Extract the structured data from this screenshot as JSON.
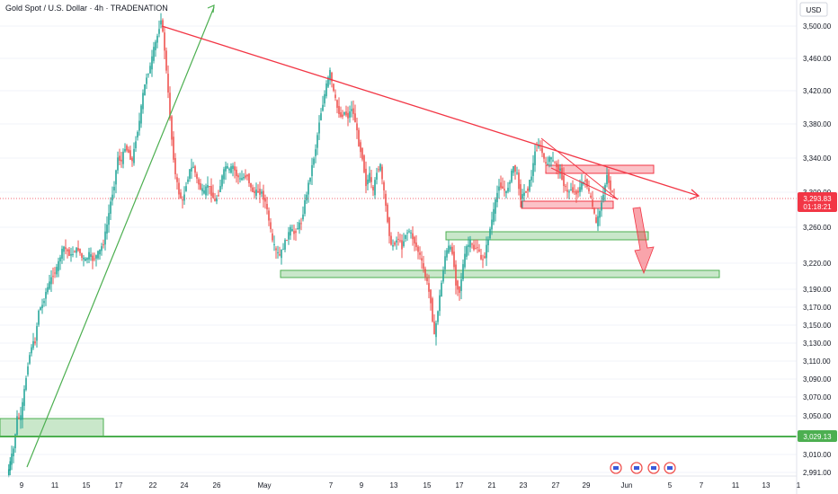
{
  "header": {
    "title": "Gold Spot / U.S. Dollar · 4h · TRADENATION",
    "currency": "USD"
  },
  "price_axis": {
    "ticks": [
      "3,500.00",
      "3,460.00",
      "3,420.00",
      "3,380.00",
      "3,340.00",
      "3,300.00",
      "3,260.00",
      "3,220.00",
      "3,190.00",
      "3,170.00",
      "3,150.00",
      "3,130.00",
      "3,110.00",
      "3,090.00",
      "3,070.00",
      "3,050.00",
      "3,029.13",
      "3,010.00",
      "2,991.00"
    ],
    "current_price": "3,293.83",
    "countdown": "01:18:21",
    "level_label": "3,029.13"
  },
  "time_axis": {
    "ticks": [
      "9",
      "11",
      "15",
      "17",
      "22",
      "24",
      "26",
      "May",
      "7",
      "9",
      "13",
      "15",
      "17",
      "21",
      "23",
      "27",
      "29",
      "Jun",
      "5",
      "7",
      "11",
      "13",
      "1"
    ]
  },
  "colors": {
    "up": "#26a69a",
    "down": "#ef5350",
    "zone_green": "#4caf50",
    "zone_red": "#f23645",
    "trend_red": "#f23645",
    "trend_green": "#4caf50",
    "current_price_bg": "#f23645",
    "level_bg": "#4caf50"
  },
  "chart_data": {
    "type": "candlestick",
    "title": "Gold Spot / U.S. Dollar · 4h · TRADENATION",
    "ylim": [
      2985,
      3515
    ],
    "path_points": [
      [
        9,
        2985
      ],
      [
        12,
        3000
      ],
      [
        16,
        3015
      ],
      [
        20,
        3050
      ],
      [
        24,
        3050
      ],
      [
        28,
        3080
      ],
      [
        32,
        3110
      ],
      [
        36,
        3130
      ],
      [
        40,
        3135
      ],
      [
        44,
        3170
      ],
      [
        48,
        3175
      ],
      [
        52,
        3190
      ],
      [
        56,
        3200
      ],
      [
        60,
        3210
      ],
      [
        64,
        3215
      ],
      [
        68,
        3230
      ],
      [
        72,
        3240
      ],
      [
        76,
        3235
      ],
      [
        80,
        3230
      ],
      [
        84,
        3236
      ],
      [
        88,
        3238
      ],
      [
        92,
        3228
      ],
      [
        96,
        3225
      ],
      [
        100,
        3232
      ],
      [
        104,
        3226
      ],
      [
        108,
        3230
      ],
      [
        112,
        3236
      ],
      [
        116,
        3245
      ],
      [
        120,
        3265
      ],
      [
        124,
        3290
      ],
      [
        128,
        3310
      ],
      [
        132,
        3340
      ],
      [
        136,
        3335
      ],
      [
        140,
        3352
      ],
      [
        144,
        3345
      ],
      [
        148,
        3335
      ],
      [
        152,
        3360
      ],
      [
        156,
        3380
      ],
      [
        160,
        3410
      ],
      [
        164,
        3430
      ],
      [
        168,
        3440
      ],
      [
        172,
        3460
      ],
      [
        176,
        3475
      ],
      [
        180,
        3495
      ],
      [
        184,
        3460
      ],
      [
        188,
        3410
      ],
      [
        192,
        3360
      ],
      [
        196,
        3320
      ],
      [
        200,
        3300
      ],
      [
        204,
        3290
      ],
      [
        208,
        3310
      ],
      [
        212,
        3325
      ],
      [
        216,
        3330
      ],
      [
        220,
        3315
      ],
      [
        224,
        3305
      ],
      [
        228,
        3300
      ],
      [
        232,
        3310
      ],
      [
        236,
        3300
      ],
      [
        240,
        3290
      ],
      [
        244,
        3300
      ],
      [
        248,
        3318
      ],
      [
        252,
        3330
      ],
      [
        256,
        3325
      ],
      [
        260,
        3330
      ],
      [
        264,
        3320
      ],
      [
        268,
        3315
      ],
      [
        272,
        3318
      ],
      [
        276,
        3320
      ],
      [
        280,
        3305
      ],
      [
        284,
        3300
      ],
      [
        288,
        3302
      ],
      [
        292,
        3300
      ],
      [
        296,
        3290
      ],
      [
        300,
        3270
      ],
      [
        304,
        3245
      ],
      [
        308,
        3235
      ],
      [
        312,
        3230
      ],
      [
        316,
        3240
      ],
      [
        320,
        3250
      ],
      [
        324,
        3260
      ],
      [
        328,
        3255
      ],
      [
        332,
        3262
      ],
      [
        336,
        3268
      ],
      [
        340,
        3290
      ],
      [
        344,
        3310
      ],
      [
        348,
        3330
      ],
      [
        352,
        3350
      ],
      [
        356,
        3380
      ],
      [
        360,
        3400
      ],
      [
        364,
        3420
      ],
      [
        368,
        3435
      ],
      [
        372,
        3412
      ],
      [
        376,
        3395
      ],
      [
        380,
        3385
      ],
      [
        384,
        3390
      ],
      [
        388,
        3385
      ],
      [
        392,
        3395
      ],
      [
        396,
        3380
      ],
      [
        400,
        3355
      ],
      [
        404,
        3340
      ],
      [
        408,
        3310
      ],
      [
        412,
        3320
      ],
      [
        416,
        3300
      ],
      [
        420,
        3325
      ],
      [
        424,
        3330
      ],
      [
        428,
        3300
      ],
      [
        432,
        3270
      ],
      [
        436,
        3240
      ],
      [
        440,
        3245
      ],
      [
        444,
        3250
      ],
      [
        448,
        3240
      ],
      [
        452,
        3255
      ],
      [
        456,
        3258
      ],
      [
        460,
        3250
      ],
      [
        464,
        3240
      ],
      [
        468,
        3230
      ],
      [
        472,
        3215
      ],
      [
        476,
        3200
      ],
      [
        480,
        3180
      ],
      [
        484,
        3140
      ],
      [
        488,
        3170
      ],
      [
        492,
        3200
      ],
      [
        496,
        3230
      ],
      [
        500,
        3240
      ],
      [
        504,
        3235
      ],
      [
        508,
        3200
      ],
      [
        512,
        3190
      ],
      [
        516,
        3220
      ],
      [
        520,
        3240
      ],
      [
        524,
        3245
      ],
      [
        528,
        3238
      ],
      [
        532,
        3240
      ],
      [
        536,
        3225
      ],
      [
        540,
        3230
      ],
      [
        544,
        3250
      ],
      [
        548,
        3270
      ],
      [
        552,
        3290
      ],
      [
        556,
        3310
      ],
      [
        560,
        3305
      ],
      [
        564,
        3300
      ],
      [
        568,
        3315
      ],
      [
        572,
        3330
      ],
      [
        576,
        3320
      ],
      [
        580,
        3295
      ],
      [
        584,
        3300
      ],
      [
        588,
        3305
      ],
      [
        592,
        3320
      ],
      [
        596,
        3345
      ],
      [
        600,
        3355
      ],
      [
        604,
        3345
      ],
      [
        608,
        3330
      ],
      [
        612,
        3340
      ],
      [
        616,
        3335
      ],
      [
        620,
        3330
      ],
      [
        624,
        3325
      ],
      [
        628,
        3310
      ],
      [
        632,
        3300
      ],
      [
        636,
        3305
      ],
      [
        640,
        3300
      ],
      [
        644,
        3302
      ],
      [
        648,
        3310
      ],
      [
        652,
        3315
      ],
      [
        656,
        3300
      ],
      [
        660,
        3285
      ],
      [
        664,
        3265
      ],
      [
        668,
        3280
      ],
      [
        672,
        3300
      ],
      [
        676,
        3320
      ],
      [
        680,
        3305
      ],
      [
        684,
        3293
      ]
    ],
    "levels": [
      {
        "name": "Support",
        "value": 3029.13
      }
    ]
  }
}
